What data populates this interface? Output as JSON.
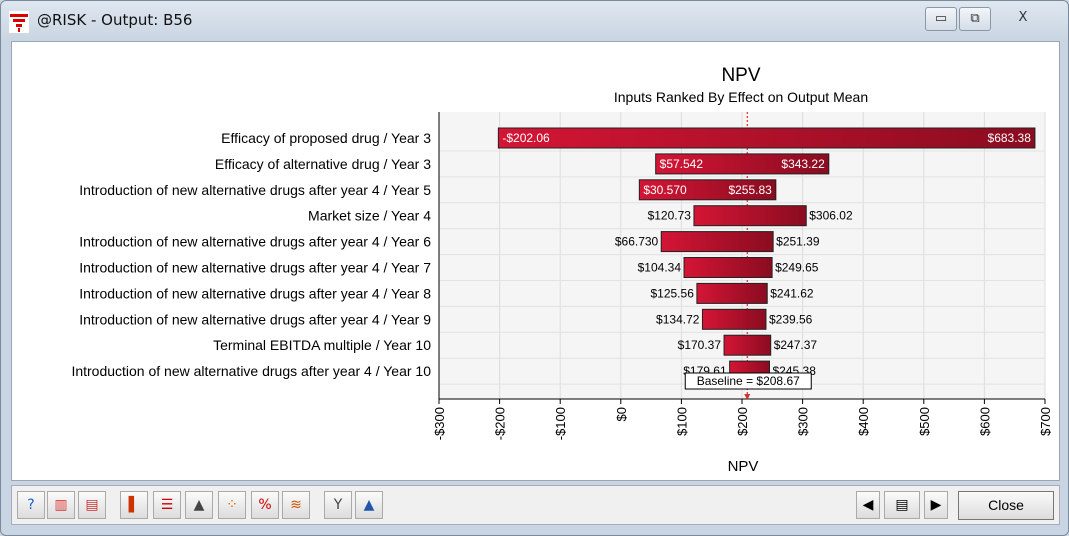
{
  "window": {
    "title": "@RISK - Output: B56",
    "minimize": "▭",
    "restore": "⧉",
    "close": "X"
  },
  "chart_data": {
    "type": "tornado",
    "title": "NPV",
    "subtitle": "Inputs Ranked By Effect on Output Mean",
    "xlabel": "NPV",
    "xlim": [
      -300,
      700
    ],
    "ticks": [
      "-$300",
      "-$200",
      "-$100",
      "$0",
      "$100",
      "$200",
      "$300",
      "$400",
      "$500",
      "$600",
      "$700"
    ],
    "tick_values": [
      -300,
      -200,
      -100,
      0,
      100,
      200,
      300,
      400,
      500,
      600,
      700
    ],
    "baseline": 208.67,
    "baseline_label": "Baseline = $208.67",
    "bars": [
      {
        "label": "Efficacy of proposed drug / Year 3",
        "low": -202.06,
        "high": 683.38,
        "low_label": "-$202.06",
        "high_label": "$683.38",
        "inside": true
      },
      {
        "label": "Efficacy of alternative drug / Year 3",
        "low": 57.542,
        "high": 343.22,
        "low_label": "$57.542",
        "high_label": "$343.22",
        "inside": true
      },
      {
        "label": "Introduction of new alternative drugs after year 4 / Year 5",
        "low": 30.57,
        "high": 255.83,
        "low_label": "$30.570",
        "high_label": "$255.83",
        "inside": true
      },
      {
        "label": "Market size / Year 4",
        "low": 120.73,
        "high": 306.02,
        "low_label": "$120.73",
        "high_label": "$306.02",
        "inside": false
      },
      {
        "label": "Introduction of new alternative drugs after year 4 / Year 6",
        "low": 66.73,
        "high": 251.39,
        "low_label": "$66.730",
        "high_label": "$251.39",
        "inside": false
      },
      {
        "label": "Introduction of new alternative drugs after year 4 / Year 7",
        "low": 104.34,
        "high": 249.65,
        "low_label": "$104.34",
        "high_label": "$249.65",
        "inside": false
      },
      {
        "label": "Introduction of new alternative drugs after year 4 / Year 8",
        "low": 125.56,
        "high": 241.62,
        "low_label": "$125.56",
        "high_label": "$241.62",
        "inside": false
      },
      {
        "label": "Introduction of new alternative drugs after year 4 / Year 9",
        "low": 134.72,
        "high": 239.56,
        "low_label": "$134.72",
        "high_label": "$239.56",
        "inside": false
      },
      {
        "label": "Terminal EBITDA multiple / Year 10",
        "low": 170.37,
        "high": 247.37,
        "low_label": "$170.37",
        "high_label": "$247.37",
        "inside": false
      },
      {
        "label": "Introduction of new alternative drugs after year 4 / Year 10",
        "low": 179.61,
        "high": 245.38,
        "low_label": "$179.61",
        "high_label": "$245.38",
        "inside": false
      }
    ],
    "bar_color": "#c8102e"
  },
  "toolbar": {
    "icons": [
      {
        "name": "help-icon",
        "glyph": "?"
      },
      {
        "name": "bar-chart-icon",
        "glyph": "▥"
      },
      {
        "name": "report-icon",
        "glyph": "▤"
      },
      {
        "name": "histogram-icon",
        "glyph": "▌"
      },
      {
        "name": "tornado-icon",
        "glyph": "☰"
      },
      {
        "name": "area-chart-icon",
        "glyph": "▲"
      },
      {
        "name": "scatter-icon",
        "glyph": "⁘"
      },
      {
        "name": "percent-icon",
        "glyph": "%"
      },
      {
        "name": "summary-graph-icon",
        "glyph": "≋"
      },
      {
        "name": "filter-icon",
        "glyph": "Y"
      },
      {
        "name": "distribution-icon",
        "glyph": "▲"
      }
    ],
    "prev": "◀",
    "page": "▤",
    "next": "▶",
    "close_label": "Close"
  }
}
